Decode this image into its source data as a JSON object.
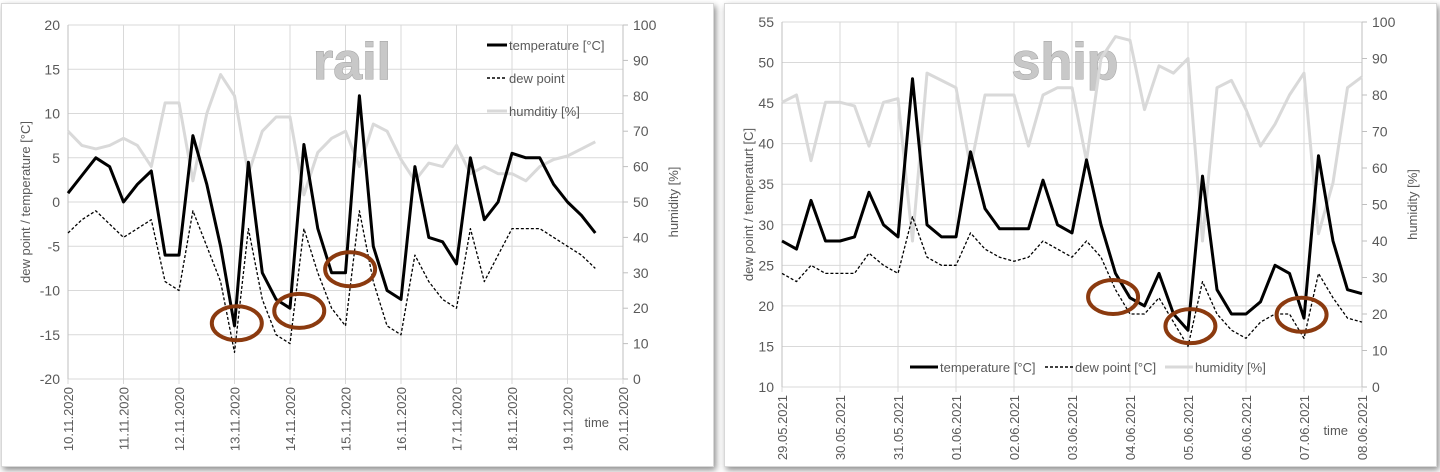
{
  "chart_data": [
    {
      "type": "line",
      "title": "rail",
      "ylabel": "dew point / temperature [°C]",
      "y2label": "humidity [%]",
      "xlabel": "time",
      "ylim": [
        -20,
        20
      ],
      "y2lim": [
        0,
        100
      ],
      "yticks": [
        20,
        15,
        10,
        5,
        0,
        -5,
        -10,
        -15,
        -20
      ],
      "y2ticks": [
        100,
        90,
        80,
        70,
        60,
        50,
        40,
        30,
        20,
        10,
        0
      ],
      "xlim": [
        "2020-11-10",
        "2020-11-20"
      ],
      "xticks": [
        "10.11.2020",
        "11.11.2020",
        "12.11.2020",
        "13.11.2020",
        "14.11.2020",
        "15.11.2020",
        "16.11.2020",
        "17.11.2020",
        "18.11.2020",
        "19.11.2020",
        "20.11.2020"
      ],
      "grid": true,
      "legend": "top-right",
      "x": [
        "2020-11-10 00:00",
        "2020-11-10 06:00",
        "2020-11-10 12:00",
        "2020-11-10 18:00",
        "2020-11-11 00:00",
        "2020-11-11 06:00",
        "2020-11-11 12:00",
        "2020-11-11 18:00",
        "2020-11-12 00:00",
        "2020-11-12 06:00",
        "2020-11-12 12:00",
        "2020-11-12 18:00",
        "2020-11-13 00:00",
        "2020-11-13 06:00",
        "2020-11-13 12:00",
        "2020-11-13 18:00",
        "2020-11-14 00:00",
        "2020-11-14 06:00",
        "2020-11-14 12:00",
        "2020-11-14 18:00",
        "2020-11-15 00:00",
        "2020-11-15 06:00",
        "2020-11-15 12:00",
        "2020-11-15 18:00",
        "2020-11-16 00:00",
        "2020-11-16 06:00",
        "2020-11-16 12:00",
        "2020-11-16 18:00",
        "2020-11-17 00:00",
        "2020-11-17 06:00",
        "2020-11-17 12:00",
        "2020-11-17 18:00",
        "2020-11-18 00:00",
        "2020-11-18 06:00",
        "2020-11-18 12:00",
        "2020-11-18 18:00",
        "2020-11-19 00:00",
        "2020-11-19 06:00",
        "2020-11-19 12:00"
      ],
      "series": [
        {
          "name": "temperature [°C]",
          "axis": "left",
          "style": "solid",
          "color": "#000000",
          "values": [
            1,
            3,
            5,
            4,
            0,
            2,
            3.5,
            -6,
            -6,
            7.5,
            2,
            -5,
            -14,
            4.5,
            -8,
            -11,
            -12,
            6.5,
            -3,
            -8,
            -8,
            12,
            -5,
            -10,
            -11,
            4,
            -4,
            -4.5,
            -7,
            5,
            -2,
            0,
            5.5,
            5,
            5,
            2,
            0,
            -1.5,
            -3.5
          ]
        },
        {
          "name": "dew point",
          "axis": "left",
          "style": "dashed",
          "color": "#000000",
          "values": [
            -3.5,
            -2,
            -1,
            -2.5,
            -4,
            -3,
            -2,
            -9,
            -10,
            -1,
            -5,
            -9,
            -17,
            -3,
            -11,
            -15,
            -16,
            -3,
            -8,
            -12,
            -14,
            -1,
            -9,
            -14,
            -15,
            -6,
            -9,
            -11,
            -12,
            -3,
            -9,
            -6,
            -3,
            -3,
            -3,
            -4,
            -5,
            -6,
            -7.5
          ]
        },
        {
          "name": "humditiy [%]",
          "axis": "right",
          "style": "solid",
          "color": "#d9d9d9",
          "values": [
            70,
            66,
            65,
            66,
            68,
            66,
            60,
            78,
            78,
            56,
            75,
            86,
            80,
            58,
            70,
            74,
            74,
            52,
            64,
            68,
            70,
            60,
            72,
            70,
            62,
            56,
            61,
            60,
            66,
            58,
            60,
            58,
            58,
            56,
            60,
            62,
            63,
            65,
            67
          ]
        }
      ],
      "annotations": [
        {
          "shape": "circle",
          "x": "2020-11-13 01:00",
          "y": -13.7,
          "color": "#8b3a0f"
        },
        {
          "shape": "circle",
          "x": "2020-11-14 04:00",
          "y": -12.3,
          "color": "#8b3a0f"
        },
        {
          "shape": "circle",
          "x": "2020-11-15 02:00",
          "y": -7.6,
          "color": "#8b3a0f"
        }
      ]
    },
    {
      "type": "line",
      "title": "ship",
      "ylabel": "dew point / temperaturt [C]",
      "y2label": "humidity [%]",
      "xlabel": "time",
      "ylim": [
        10,
        55
      ],
      "y2lim": [
        0,
        100
      ],
      "yticks": [
        55,
        50,
        45,
        40,
        35,
        30,
        25,
        20,
        15,
        10
      ],
      "y2ticks": [
        100,
        90,
        80,
        70,
        60,
        50,
        40,
        30,
        20,
        10,
        0
      ],
      "xlim": [
        "2021-05-29",
        "2021-06-08"
      ],
      "xticks": [
        "29.05.2021",
        "30.05.2021",
        "31.05.2021",
        "01.06.2021",
        "02.06.2021",
        "03.06.2021",
        "04.06.2021",
        "05.06.2021",
        "06.06.2021",
        "07.06.2021",
        "08.06.2021"
      ],
      "grid": true,
      "legend": "bottom",
      "x": [
        "2021-05-29 00:00",
        "2021-05-29 06:00",
        "2021-05-29 12:00",
        "2021-05-29 18:00",
        "2021-05-30 00:00",
        "2021-05-30 06:00",
        "2021-05-30 12:00",
        "2021-05-30 18:00",
        "2021-05-31 00:00",
        "2021-05-31 06:00",
        "2021-05-31 12:00",
        "2021-05-31 18:00",
        "2021-06-01 00:00",
        "2021-06-01 06:00",
        "2021-06-01 12:00",
        "2021-06-01 18:00",
        "2021-06-02 00:00",
        "2021-06-02 06:00",
        "2021-06-02 12:00",
        "2021-06-02 18:00",
        "2021-06-03 00:00",
        "2021-06-03 06:00",
        "2021-06-03 12:00",
        "2021-06-03 18:00",
        "2021-06-04 00:00",
        "2021-06-04 06:00",
        "2021-06-04 12:00",
        "2021-06-04 18:00",
        "2021-06-05 00:00",
        "2021-06-05 06:00",
        "2021-06-05 12:00",
        "2021-06-05 18:00",
        "2021-06-06 00:00",
        "2021-06-06 06:00",
        "2021-06-06 12:00",
        "2021-06-06 18:00",
        "2021-06-07 00:00",
        "2021-06-07 06:00",
        "2021-06-07 12:00",
        "2021-06-07 18:00",
        "2021-06-08 00:00"
      ],
      "series": [
        {
          "name": "temperature [°C]",
          "axis": "left",
          "style": "solid",
          "color": "#000000",
          "values": [
            28,
            27,
            33,
            28,
            28,
            28.5,
            34,
            30,
            28.5,
            48,
            30,
            28.5,
            28.5,
            39,
            32,
            29.5,
            29.5,
            29.5,
            35.5,
            30,
            29,
            38,
            30,
            24,
            21,
            20,
            24,
            19,
            17,
            36,
            22,
            19,
            19,
            20.5,
            25,
            24,
            18.5,
            38.5,
            28,
            22,
            21.5
          ]
        },
        {
          "name": "dew point [°C]",
          "axis": "left",
          "style": "dashed",
          "color": "#000000",
          "values": [
            24,
            23,
            25,
            24,
            24,
            24,
            26.5,
            25,
            24,
            31,
            26,
            25,
            25,
            29,
            27,
            26,
            25.5,
            26,
            28,
            27,
            26,
            28,
            26,
            22,
            19,
            19,
            21,
            18,
            15,
            23,
            19,
            17,
            16,
            18,
            19,
            19,
            16,
            24,
            21,
            18.5,
            18
          ]
        },
        {
          "name": "humidity [%]",
          "axis": "right",
          "style": "solid",
          "color": "#d9d9d9",
          "values": [
            78,
            80,
            62,
            78,
            78,
            77,
            66,
            78,
            79,
            40,
            86,
            84,
            82,
            60,
            80,
            80,
            80,
            66,
            80,
            82,
            82,
            62,
            90,
            96,
            95,
            76,
            88,
            86,
            90,
            40,
            82,
            84,
            76,
            66,
            72,
            80,
            86,
            42,
            56,
            82,
            85
          ]
        }
      ],
      "annotations": [
        {
          "shape": "circle",
          "x": "2021-06-03 17:00",
          "y": 21.1,
          "color": "#8b3a0f"
        },
        {
          "shape": "circle",
          "x": "2021-06-05 01:00",
          "y": 17.5,
          "color": "#8b3a0f"
        },
        {
          "shape": "circle",
          "x": "2021-06-06 23:00",
          "y": 18.9,
          "color": "#8b3a0f"
        }
      ]
    }
  ]
}
